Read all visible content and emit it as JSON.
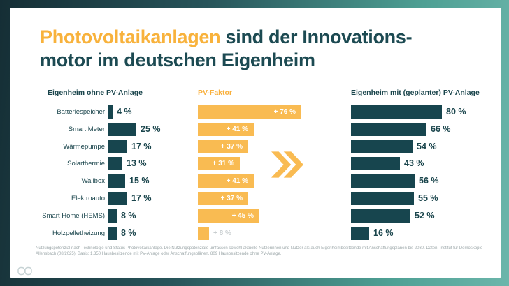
{
  "title": {
    "highlight": "Photovoltaikanlagen",
    "line1_rest": " sind der Innovations-",
    "line2": "motor im deutschen Eigenheim"
  },
  "chart_data": {
    "type": "bar",
    "orientation": "horizontal",
    "title": "Photovoltaikanlagen sind der Innovationsmotor im deutschen Eigenheim",
    "categories": [
      "Batteriespeicher",
      "Smart Meter",
      "Wärmepumpe",
      "Solarthermie",
      "Wallbox",
      "Elektroauto",
      "Smart Home (HEMS)",
      "Holzpelletheizung"
    ],
    "series": [
      {
        "name": "Eigenheim ohne PV-Anlage",
        "values": [
          4,
          25,
          17,
          13,
          15,
          17,
          8,
          8
        ],
        "unit": "%",
        "label_format": "{v} %",
        "color": "#17454e"
      },
      {
        "name": "PV-Faktor",
        "values": [
          76,
          41,
          37,
          31,
          41,
          37,
          45,
          8
        ],
        "unit": "%",
        "label_format": "+ {v} %",
        "color": "#f9bb52"
      },
      {
        "name": "Eigenheim mit (geplanter) PV-Anlage",
        "values": [
          80,
          66,
          54,
          43,
          56,
          55,
          52,
          16
        ],
        "unit": "%",
        "label_format": "{v} %",
        "color": "#17454e"
      }
    ],
    "xlim": [
      0,
      100
    ],
    "grid": false,
    "legend_position": "column-headers",
    "annotations": [
      "double-chevron-right between PV-Faktor and right column"
    ]
  },
  "colors": {
    "accent_yellow": "#f8b23c",
    "bar_yellow": "#f9bb52",
    "teal_dark": "#17454e",
    "frame_gradient_start": "#152e35",
    "frame_gradient_end": "#6cb6ab",
    "muted_label": "#c9ced0",
    "footer_text": "#9ca7a9"
  },
  "footer": {
    "text": "Nutzungspotenzial nach Technologie und Status Photovoltaikanlage. Die Nutzungspotenziale umfassen sowohl aktuelle Nutzerinnen und Nutzer als auch Eigenheimbesitzende mit Anschaffungsplänen bis 2030. Daten: Institut für Demoskopie Allensbach (08/2025). Basis: 1.350 Hausbesitzende mit PV-Anlage oder Anschaffungsplänen, 809 Hausbesitzende ohne PV-Anlage."
  }
}
